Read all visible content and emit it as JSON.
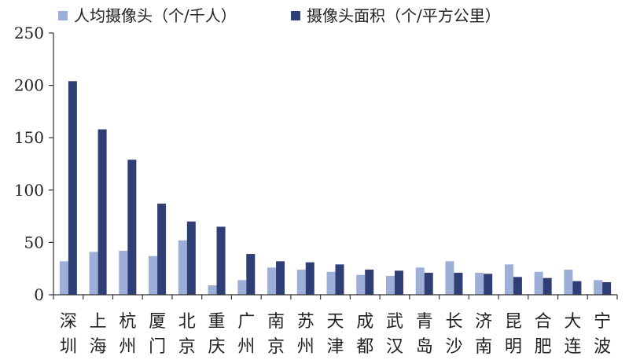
{
  "chart_data": {
    "type": "bar",
    "categories": [
      [
        "深",
        "圳"
      ],
      [
        "上",
        "海"
      ],
      [
        "杭",
        "州"
      ],
      [
        "厦",
        "门"
      ],
      [
        "北",
        "京"
      ],
      [
        "重",
        "庆"
      ],
      [
        "广",
        "州"
      ],
      [
        "南",
        "京"
      ],
      [
        "苏",
        "州"
      ],
      [
        "天",
        "津"
      ],
      [
        "成",
        "都"
      ],
      [
        "武",
        "汉"
      ],
      [
        "青",
        "岛"
      ],
      [
        "长",
        "沙"
      ],
      [
        "济",
        "南"
      ],
      [
        "昆",
        "明"
      ],
      [
        "合",
        "肥"
      ],
      [
        "大",
        "连"
      ],
      [
        "宁",
        "波"
      ]
    ],
    "series": [
      {
        "name": "人均摄像头（个/千人）",
        "color": "#9DAED8",
        "values": [
          32,
          41,
          42,
          37,
          52,
          9,
          14,
          26,
          24,
          22,
          19,
          18,
          26,
          32,
          21,
          29,
          22,
          24,
          14
        ]
      },
      {
        "name": "摄像头面积（个/平方公里）",
        "color": "#2F3F75",
        "values": [
          204,
          158,
          129,
          87,
          70,
          65,
          39,
          32,
          31,
          29,
          24,
          23,
          21,
          21,
          20,
          17,
          16,
          13,
          12
        ]
      }
    ],
    "ylim": [
      0,
      250
    ],
    "yticks": [
      "0",
      "50",
      "100",
      "150",
      "200",
      "250"
    ],
    "xlabel": "",
    "ylabel": "",
    "title": "",
    "legend_position": "top",
    "grid": false
  }
}
